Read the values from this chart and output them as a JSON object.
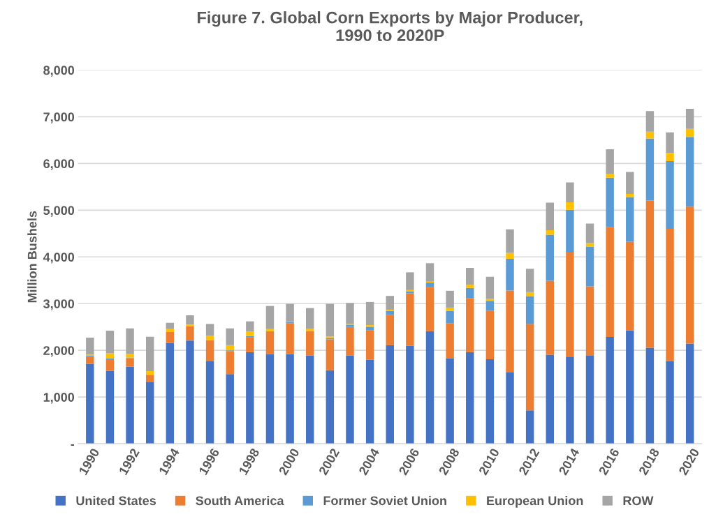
{
  "chart_data": {
    "type": "bar",
    "stacked": true,
    "title": "Figure 7. Global Corn Exports by Major Producer,\n1990 to 2020P",
    "ylabel": "Million Bushels",
    "categories": [
      "1990",
      null,
      "1992",
      null,
      "1994",
      null,
      "1996",
      null,
      "1998",
      null,
      "2000",
      null,
      "2002",
      null,
      "2004",
      null,
      "2006",
      null,
      "2008",
      null,
      "2010",
      null,
      "2012",
      null,
      "2014",
      null,
      "2016",
      null,
      "2018",
      null,
      "2020"
    ],
    "series": [
      {
        "name": "United States",
        "color": "#4472c4",
        "values": [
          1710,
          1560,
          1650,
          1315,
          2155,
          2210,
          1775,
          1490,
          1960,
          1920,
          1920,
          1890,
          1575,
          1890,
          1800,
          2110,
          2100,
          2410,
          1830,
          1960,
          1810,
          1525,
          715,
          1905,
          1865,
          1885,
          2285,
          2430,
          2055,
          1770,
          2145
        ]
      },
      {
        "name": "South America",
        "color": "#ed7d31",
        "values": [
          150,
          250,
          180,
          160,
          245,
          310,
          445,
          490,
          325,
          490,
          655,
          525,
          660,
          610,
          625,
          645,
          1120,
          950,
          745,
          1160,
          1040,
          1755,
          1850,
          1585,
          2230,
          1485,
          2350,
          1895,
          3150,
          2830,
          2930
        ]
      },
      {
        "name": "Former Soviet Union",
        "color": "#5b9bd5",
        "values": [
          30,
          20,
          15,
          null,
          0,
          0,
          0,
          20,
          20,
          0,
          25,
          0,
          25,
          50,
          80,
          90,
          45,
          90,
          270,
          215,
          210,
          680,
          595,
          985,
          915,
          850,
          1060,
          955,
          1330,
          1450,
          1495
        ]
      },
      {
        "name": "European Union",
        "color": "#ffc000",
        "values": [
          20,
          105,
          75,
          80,
          55,
          30,
          90,
          110,
          95,
          45,
          10,
          50,
          35,
          15,
          35,
          25,
          25,
          20,
          70,
          70,
          40,
          125,
          85,
          95,
          160,
          75,
          85,
          70,
          145,
          175,
          170
        ]
      },
      {
        "name": "ROW",
        "color": "#a5a5a5",
        "values": [
          360,
          485,
          550,
          735,
          135,
          200,
          255,
          360,
          220,
          495,
          385,
          440,
          700,
          450,
          495,
          295,
          380,
          395,
          360,
          360,
          475,
          505,
          500,
          590,
          425,
          420,
          525,
          470,
          440,
          440,
          430
        ]
      }
    ],
    "ylim": [
      0,
      8000
    ],
    "yticks": [
      {
        "value": 0,
        "label": "-"
      },
      {
        "value": 1000,
        "label": "1,000"
      },
      {
        "value": 2000,
        "label": "2,000"
      },
      {
        "value": 3000,
        "label": "3,000"
      },
      {
        "value": 4000,
        "label": "4,000"
      },
      {
        "value": 5000,
        "label": "5,000"
      },
      {
        "value": 6000,
        "label": "6,000"
      },
      {
        "value": 7000,
        "label": "7,000"
      },
      {
        "value": 8000,
        "label": "8,000"
      }
    ],
    "grid": "y",
    "legend": "bottom"
  }
}
